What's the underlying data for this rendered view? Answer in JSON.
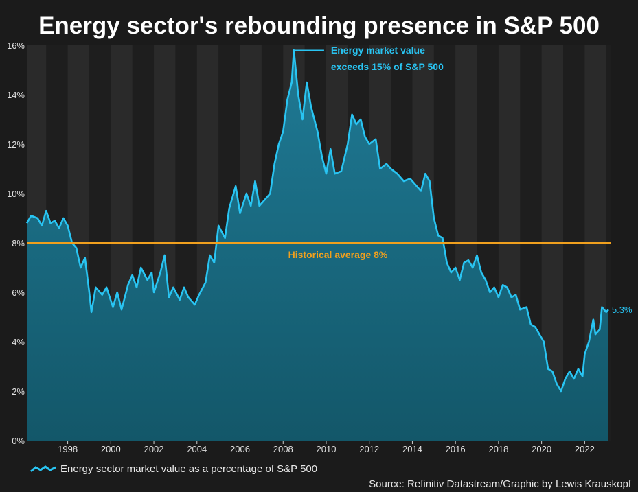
{
  "chart_data": {
    "type": "area",
    "title": "Energy sector's rebounding presence in S&P 500",
    "xlabel": "",
    "ylabel": "",
    "x_ticks": [
      "1998",
      "2000",
      "2002",
      "2004",
      "2006",
      "2008",
      "2010",
      "2012",
      "2014",
      "2016",
      "2018",
      "2020",
      "2022"
    ],
    "y_ticks": [
      "0%",
      "2%",
      "4%",
      "6%",
      "8%",
      "10%",
      "12%",
      "14%",
      "16%"
    ],
    "xlim": [
      1996.1,
      2023.2
    ],
    "ylim": [
      0,
      16
    ],
    "grid": "alternating vertical bands every 2 years",
    "series": [
      {
        "name": "Energy sector market value as a percentage of S&P 500",
        "color": "#29c4f2",
        "points": [
          [
            1996.1,
            8.8
          ],
          [
            1996.3,
            9.1
          ],
          [
            1996.6,
            9.0
          ],
          [
            1996.8,
            8.7
          ],
          [
            1997.0,
            9.3
          ],
          [
            1997.2,
            8.8
          ],
          [
            1997.4,
            8.9
          ],
          [
            1997.6,
            8.6
          ],
          [
            1997.8,
            9.0
          ],
          [
            1998.0,
            8.7
          ],
          [
            1998.2,
            8.0
          ],
          [
            1998.4,
            7.8
          ],
          [
            1998.6,
            7.0
          ],
          [
            1998.8,
            7.4
          ],
          [
            1999.0,
            6.0
          ],
          [
            1999.1,
            5.2
          ],
          [
            1999.3,
            6.2
          ],
          [
            1999.6,
            5.9
          ],
          [
            1999.8,
            6.2
          ],
          [
            2000.1,
            5.4
          ],
          [
            2000.3,
            6.0
          ],
          [
            2000.5,
            5.3
          ],
          [
            2000.8,
            6.3
          ],
          [
            2001.0,
            6.7
          ],
          [
            2001.2,
            6.2
          ],
          [
            2001.4,
            7.0
          ],
          [
            2001.7,
            6.5
          ],
          [
            2001.9,
            6.8
          ],
          [
            2002.0,
            6.0
          ],
          [
            2002.3,
            6.8
          ],
          [
            2002.5,
            7.5
          ],
          [
            2002.7,
            5.8
          ],
          [
            2002.9,
            6.2
          ],
          [
            2003.2,
            5.7
          ],
          [
            2003.4,
            6.2
          ],
          [
            2003.6,
            5.8
          ],
          [
            2003.9,
            5.5
          ],
          [
            2004.1,
            5.9
          ],
          [
            2004.4,
            6.4
          ],
          [
            2004.6,
            7.5
          ],
          [
            2004.8,
            7.2
          ],
          [
            2005.0,
            8.7
          ],
          [
            2005.3,
            8.2
          ],
          [
            2005.5,
            9.4
          ],
          [
            2005.8,
            10.3
          ],
          [
            2006.0,
            9.2
          ],
          [
            2006.3,
            10.0
          ],
          [
            2006.5,
            9.5
          ],
          [
            2006.7,
            10.5
          ],
          [
            2006.9,
            9.5
          ],
          [
            2007.1,
            9.7
          ],
          [
            2007.4,
            10.0
          ],
          [
            2007.6,
            11.2
          ],
          [
            2007.8,
            12.0
          ],
          [
            2008.0,
            12.5
          ],
          [
            2008.2,
            13.8
          ],
          [
            2008.4,
            14.5
          ],
          [
            2008.5,
            15.8
          ],
          [
            2008.7,
            14.0
          ],
          [
            2008.9,
            13.0
          ],
          [
            2009.1,
            14.5
          ],
          [
            2009.3,
            13.5
          ],
          [
            2009.6,
            12.5
          ],
          [
            2009.8,
            11.5
          ],
          [
            2010.0,
            10.8
          ],
          [
            2010.2,
            11.8
          ],
          [
            2010.4,
            10.8
          ],
          [
            2010.7,
            10.9
          ],
          [
            2011.0,
            12.0
          ],
          [
            2011.2,
            13.2
          ],
          [
            2011.4,
            12.8
          ],
          [
            2011.6,
            13.0
          ],
          [
            2011.8,
            12.3
          ],
          [
            2012.0,
            12.0
          ],
          [
            2012.3,
            12.2
          ],
          [
            2012.5,
            11.0
          ],
          [
            2012.8,
            11.2
          ],
          [
            2013.0,
            11.0
          ],
          [
            2013.3,
            10.8
          ],
          [
            2013.6,
            10.5
          ],
          [
            2013.9,
            10.6
          ],
          [
            2014.2,
            10.3
          ],
          [
            2014.4,
            10.1
          ],
          [
            2014.6,
            10.8
          ],
          [
            2014.8,
            10.5
          ],
          [
            2015.0,
            9.0
          ],
          [
            2015.2,
            8.3
          ],
          [
            2015.4,
            8.2
          ],
          [
            2015.6,
            7.2
          ],
          [
            2015.8,
            6.8
          ],
          [
            2016.0,
            7.0
          ],
          [
            2016.2,
            6.5
          ],
          [
            2016.4,
            7.2
          ],
          [
            2016.6,
            7.3
          ],
          [
            2016.8,
            7.0
          ],
          [
            2017.0,
            7.5
          ],
          [
            2017.2,
            6.8
          ],
          [
            2017.4,
            6.5
          ],
          [
            2017.6,
            6.0
          ],
          [
            2017.8,
            6.2
          ],
          [
            2018.0,
            5.8
          ],
          [
            2018.2,
            6.3
          ],
          [
            2018.4,
            6.2
          ],
          [
            2018.6,
            5.8
          ],
          [
            2018.8,
            5.9
          ],
          [
            2019.0,
            5.3
          ],
          [
            2019.3,
            5.4
          ],
          [
            2019.5,
            4.7
          ],
          [
            2019.7,
            4.6
          ],
          [
            2019.9,
            4.3
          ],
          [
            2020.1,
            4.0
          ],
          [
            2020.3,
            2.9
          ],
          [
            2020.5,
            2.8
          ],
          [
            2020.7,
            2.3
          ],
          [
            2020.9,
            2.0
          ],
          [
            2021.1,
            2.5
          ],
          [
            2021.3,
            2.8
          ],
          [
            2021.5,
            2.5
          ],
          [
            2021.7,
            2.9
          ],
          [
            2021.9,
            2.6
          ],
          [
            2022.0,
            3.5
          ],
          [
            2022.2,
            4.0
          ],
          [
            2022.4,
            4.9
          ],
          [
            2022.5,
            4.3
          ],
          [
            2022.7,
            4.5
          ],
          [
            2022.8,
            5.4
          ],
          [
            2023.0,
            5.2
          ],
          [
            2023.1,
            5.3
          ]
        ]
      }
    ],
    "reference_line": {
      "value": 8,
      "label": "Historical average 8%",
      "color": "#f0a01e"
    },
    "peak_annotation": {
      "x": 2008.5,
      "y": 15.8,
      "line1": "Energy market value",
      "line2": "exceeds 15% of S&P 500"
    },
    "end_label": "5.3%",
    "legend": {
      "placement": "bottom-left",
      "label": "Energy sector market value as a percentage of S&P 500"
    }
  },
  "source": "Source: Refinitiv Datastream/Graphic by Lewis Krauskopf"
}
